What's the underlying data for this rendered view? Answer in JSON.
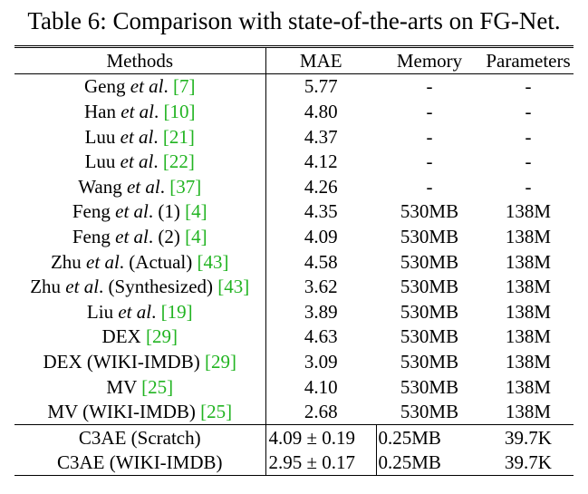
{
  "caption": "Table 6: Comparison with state-of-the-arts on FG-Net.",
  "headers": {
    "methods": "Methods",
    "mae": "MAE",
    "memory": "Memory",
    "parameters": "Parameters"
  },
  "rows": [
    {
      "name": "Geng",
      "etal": "et al",
      "dot": ".",
      "suffix": "",
      "ref": "[7]",
      "mae": "5.77",
      "memory": "-",
      "params": "-"
    },
    {
      "name": "Han",
      "etal": "et al",
      "dot": ".",
      "suffix": "",
      "ref": "[10]",
      "mae": "4.80",
      "memory": "-",
      "params": "-"
    },
    {
      "name": "Luu",
      "etal": "et al",
      "dot": ".",
      "suffix": "",
      "ref": "[21]",
      "mae": "4.37",
      "memory": "-",
      "params": "-"
    },
    {
      "name": "Luu",
      "etal": "et al",
      "dot": ".",
      "suffix": "",
      "ref": "[22]",
      "mae": "4.12",
      "memory": "-",
      "params": "-"
    },
    {
      "name": "Wang",
      "etal": "et al",
      "dot": ".",
      "suffix": "",
      "ref": "[37]",
      "mae": "4.26",
      "memory": "-",
      "params": "-"
    },
    {
      "name": "Feng",
      "etal": "et al",
      "dot": ".",
      "suffix": " (1)",
      "ref": "[4]",
      "mae": "4.35",
      "memory": "530MB",
      "params": "138M"
    },
    {
      "name": "Feng",
      "etal": "et al",
      "dot": ".",
      "suffix": " (2)",
      "ref": "[4]",
      "mae": "4.09",
      "memory": "530MB",
      "params": "138M"
    },
    {
      "name": "Zhu",
      "etal": "et al",
      "dot": ".",
      "suffix": " (Actual)",
      "ref": "[43]",
      "mae": "4.58",
      "memory": "530MB",
      "params": "138M"
    },
    {
      "name": "Zhu",
      "etal": "et al",
      "dot": ".",
      "suffix": " (Synthesized)",
      "ref": "[43]",
      "mae": "3.62",
      "memory": "530MB",
      "params": "138M"
    },
    {
      "name": "Liu",
      "etal": "et al",
      "dot": ".",
      "suffix": "",
      "ref": "[19]",
      "mae": "3.89",
      "memory": "530MB",
      "params": "138M"
    },
    {
      "name": "DEX",
      "etal": "",
      "dot": "",
      "suffix": "",
      "ref": "[29]",
      "mae": "4.63",
      "memory": "530MB",
      "params": "138M"
    },
    {
      "name": "DEX (WIKI-IMDB)",
      "etal": "",
      "dot": "",
      "suffix": "",
      "ref": "[29]",
      "mae": "3.09",
      "memory": "530MB",
      "params": "138M"
    },
    {
      "name": "MV",
      "etal": "",
      "dot": "",
      "suffix": "",
      "ref": "[25]",
      "mae": "4.10",
      "memory": "530MB",
      "params": "138M"
    },
    {
      "name": "MV (WIKI-IMDB)",
      "etal": "",
      "dot": "",
      "suffix": "",
      "ref": "[25]",
      "mae": "2.68",
      "memory": "530MB",
      "params": "138M"
    }
  ],
  "c3ae_rows": [
    {
      "name": "C3AE (Scratch)",
      "mae": "4.09 ± 0.19",
      "memory": "0.25MB",
      "params": "39.7K"
    },
    {
      "name": "C3AE (WIKI-IMDB)",
      "mae": "2.95 ± 0.17",
      "memory": "0.25MB",
      "params": "39.7K"
    }
  ]
}
